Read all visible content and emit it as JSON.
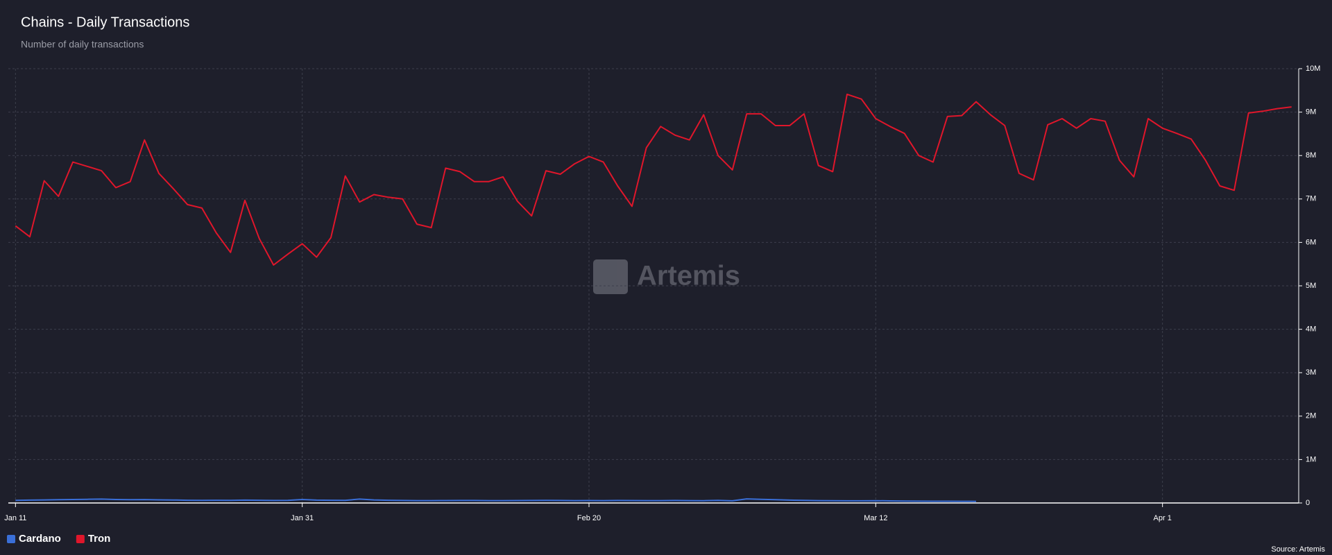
{
  "chart_data": {
    "type": "line",
    "title": "Chains - Daily Transactions",
    "subtitle": "Number of daily transactions",
    "watermark": "Artemis",
    "source": "Source: Artemis",
    "x": [
      0,
      1,
      2,
      3,
      4,
      5,
      6,
      7,
      8,
      9,
      10,
      11,
      12,
      13,
      14,
      15,
      16,
      17,
      18,
      19,
      20,
      21,
      22,
      23,
      24,
      25,
      26,
      27,
      28,
      29,
      30,
      31,
      32,
      33,
      34,
      35,
      36,
      37,
      38,
      39,
      40,
      41,
      42,
      43,
      44,
      45,
      46,
      47,
      48,
      49,
      50,
      51,
      52,
      53,
      54,
      55,
      56,
      57,
      58,
      59,
      60,
      61,
      62,
      63,
      64,
      65,
      66,
      67,
      68,
      69,
      70,
      71,
      72,
      73,
      74,
      75,
      76,
      77,
      78,
      79,
      80,
      81,
      82,
      83,
      84,
      85,
      86,
      87,
      88,
      89
    ],
    "xlim": [
      -0.5,
      89.5
    ],
    "xticks": [
      {
        "value": 0,
        "label": "Jan 11"
      },
      {
        "value": 20,
        "label": "Jan 31"
      },
      {
        "value": 40,
        "label": "Feb 20"
      },
      {
        "value": 60,
        "label": "Mar 12"
      },
      {
        "value": 80,
        "label": "Apr 1"
      }
    ],
    "ylim": [
      0,
      10000000
    ],
    "yticks": [
      0,
      {
        "value": 1000000,
        "label": "1M"
      },
      {
        "value": 2000000,
        "label": "2M"
      },
      {
        "value": 3000000,
        "label": "3M"
      },
      {
        "value": 4000000,
        "label": "4M"
      },
      {
        "value": 5000000,
        "label": "5M"
      },
      {
        "value": 6000000,
        "label": "6M"
      },
      {
        "value": 7000000,
        "label": "7M"
      },
      {
        "value": 8000000,
        "label": "8M"
      },
      {
        "value": 9000000,
        "label": "9M"
      },
      {
        "value": 10000000,
        "label": "10M"
      }
    ],
    "grid": true,
    "legend": "bottom-left",
    "series": [
      {
        "name": "Cardano",
        "color": "#3a6fd8",
        "values": [
          60000,
          65000,
          70000,
          75000,
          80000,
          85000,
          90000,
          80000,
          75000,
          78000,
          72000,
          68000,
          62000,
          60000,
          63000,
          60000,
          65000,
          62000,
          58000,
          60000,
          80000,
          65000,
          62000,
          60000,
          90000,
          70000,
          62000,
          58000,
          55000,
          55000,
          56000,
          58000,
          57000,
          55000,
          54000,
          56000,
          58000,
          60000,
          58000,
          55000,
          56000,
          55000,
          58000,
          56000,
          54000,
          55000,
          57000,
          55000,
          52000,
          60000,
          50000,
          95000,
          85000,
          75000,
          65000,
          60000,
          55000,
          52000,
          50000,
          50000,
          52000,
          48000,
          45000,
          42000,
          40000,
          40000,
          38000,
          36000,
          null,
          null,
          null,
          null,
          null,
          null,
          null,
          null,
          null,
          null,
          null,
          null,
          null,
          null,
          null,
          null,
          null,
          null,
          null,
          null,
          null,
          null
        ]
      },
      {
        "name": "Tron",
        "color": "#e0162b",
        "values": [
          6380000,
          6130000,
          7420000,
          7060000,
          7850000,
          7750000,
          7650000,
          7260000,
          7400000,
          8360000,
          7590000,
          7240000,
          6870000,
          6790000,
          6220000,
          5770000,
          6970000,
          6090000,
          5480000,
          5730000,
          5970000,
          5660000,
          6110000,
          7530000,
          6930000,
          7100000,
          7040000,
          7000000,
          6420000,
          6340000,
          7710000,
          7630000,
          7400000,
          7400000,
          7510000,
          6950000,
          6610000,
          7650000,
          7570000,
          7810000,
          7980000,
          7850000,
          7300000,
          6830000,
          8180000,
          8670000,
          8470000,
          8360000,
          8940000,
          8000000,
          7670000,
          8960000,
          8960000,
          8690000,
          8690000,
          8960000,
          7770000,
          7630000,
          9410000,
          9300000,
          8850000,
          8670000,
          8510000,
          8000000,
          7850000,
          8900000,
          8920000,
          9240000,
          8940000,
          8690000,
          7590000,
          7440000,
          8710000,
          8850000,
          8630000,
          8850000,
          8790000,
          7890000,
          7510000,
          8850000,
          8630000,
          8510000,
          8380000,
          7890000,
          7300000,
          7200000,
          8980000,
          9020000,
          9080000,
          9120000
        ]
      }
    ]
  }
}
